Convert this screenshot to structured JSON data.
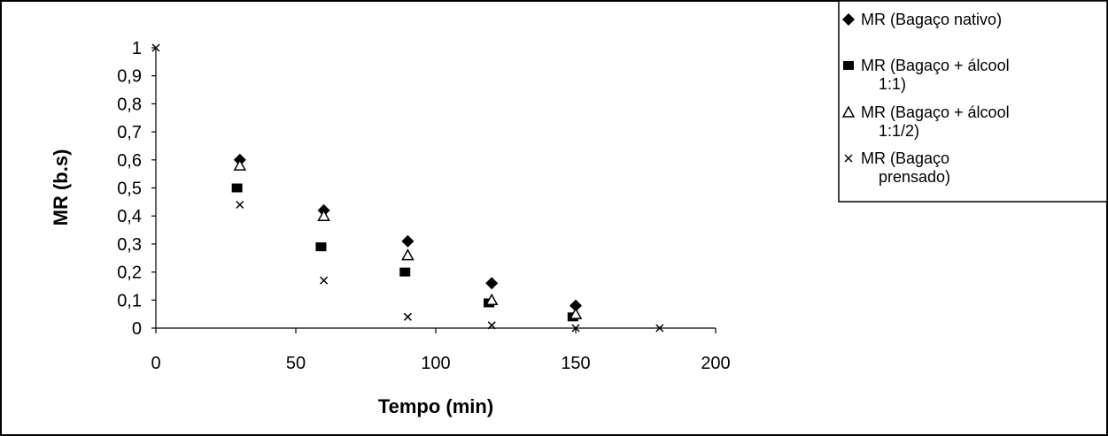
{
  "chart_data": {
    "type": "scatter",
    "xlabel": "Tempo (min)",
    "ylabel": "MR (b.s)",
    "xlim": [
      0,
      200
    ],
    "ylim": [
      0,
      1
    ],
    "x_ticks": [
      "0",
      "50",
      "100",
      "150",
      "200"
    ],
    "y_ticks": [
      "0",
      "0,1",
      "0,2",
      "0,3",
      "0,4",
      "0,5",
      "0,6",
      "0,7",
      "0,8",
      "0,9",
      "1"
    ],
    "grid": false,
    "legend_position": "top-right",
    "series": [
      {
        "name": "MR (Bagaço nativo)",
        "legend_lines": [
          "MR (Bagaço nativo)"
        ],
        "marker": "diamond",
        "color": "#000000",
        "points": [
          [
            30,
            0.6
          ],
          [
            60,
            0.42
          ],
          [
            90,
            0.31
          ],
          [
            120,
            0.16
          ],
          [
            150,
            0.08
          ]
        ]
      },
      {
        "name": "MR (Bagaço + álcool 1:1)",
        "legend_lines": [
          "MR (Bagaço + álcool",
          "1:1)"
        ],
        "marker": "square",
        "color": "#000000",
        "points": [
          [
            29,
            0.5
          ],
          [
            59,
            0.29
          ],
          [
            89,
            0.2
          ],
          [
            119,
            0.09
          ],
          [
            149,
            0.04
          ]
        ]
      },
      {
        "name": "MR (Bagaço + álcool 1:1/2)",
        "legend_lines": [
          "MR (Bagaço + álcool",
          "1:1/2)"
        ],
        "marker": "triangle",
        "color": "#000000",
        "points": [
          [
            30,
            0.58
          ],
          [
            60,
            0.4
          ],
          [
            90,
            0.26
          ],
          [
            120,
            0.1
          ],
          [
            150,
            0.05
          ]
        ]
      },
      {
        "name": "MR (Bagaço prensado)",
        "legend_lines": [
          "MR (Bagaço",
          "prensado)"
        ],
        "marker": "x",
        "color": "#000000",
        "points": [
          [
            0,
            1.0
          ],
          [
            30,
            0.44
          ],
          [
            60,
            0.17
          ],
          [
            90,
            0.04
          ],
          [
            120,
            0.01
          ],
          [
            150,
            0.0
          ],
          [
            180,
            0.0
          ]
        ]
      }
    ]
  }
}
